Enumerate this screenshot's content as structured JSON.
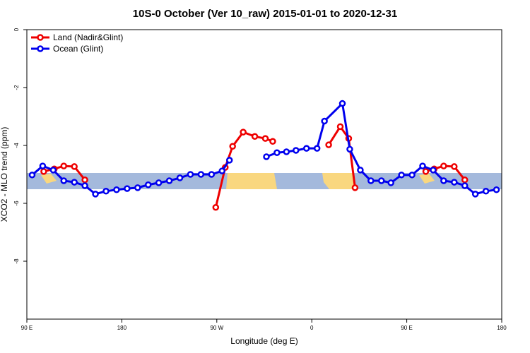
{
  "chart_data": {
    "type": "line",
    "title": "10S-0 October (Ver 10_raw)   2015-01-01 to 2020-12-31",
    "x_label": "Longitude (deg E)",
    "y_label": "XCO2 - MLO trend (ppm)",
    "xlim": [
      90,
      540
    ],
    "xticks": [
      {
        "value": 90,
        "label": "90 E"
      },
      {
        "value": 180,
        "label": "180"
      },
      {
        "value": 270,
        "label": "90 W"
      },
      {
        "value": 360,
        "label": "0"
      },
      {
        "value": 450,
        "label": "90 E"
      },
      {
        "value": 540,
        "label": "180"
      }
    ],
    "ylim": [
      -10,
      0
    ],
    "yticks": [
      0,
      -2,
      -4,
      -6,
      -8
    ],
    "legend": "top-left",
    "series": [
      {
        "name": "Land (Nadir&Glint)",
        "color": "#ee0000",
        "x": [
          106,
          116,
          125,
          135,
          145,
          null,
          269,
          278,
          285,
          295,
          306,
          316,
          323,
          null,
          376,
          387,
          395,
          401,
          null,
          468,
          476,
          485,
          495,
          505
        ],
        "values": [
          -4.9,
          -4.81,
          -4.71,
          -4.73,
          -5.19,
          null,
          -6.14,
          -4.76,
          -4.03,
          -3.54,
          -3.69,
          -3.76,
          -3.86,
          null,
          -3.98,
          -3.35,
          -3.76,
          -5.46,
          null,
          -4.9,
          -4.81,
          -4.71,
          -4.73,
          -5.19
        ]
      },
      {
        "name": "Ocean (Glint)",
        "color": "#0000ee",
        "x": [
          95,
          105,
          115,
          125,
          135,
          145,
          155,
          165,
          175,
          185,
          195,
          205,
          215,
          225,
          235,
          245,
          255,
          265,
          275,
          282,
          null,
          317,
          327,
          336,
          345,
          355,
          365,
          372,
          389,
          396,
          406,
          416,
          426,
          435,
          445,
          455,
          465,
          475,
          485,
          495,
          505,
          515,
          525,
          535
        ],
        "values": [
          -5.02,
          -4.71,
          -4.85,
          -5.22,
          -5.27,
          -5.39,
          -5.68,
          -5.58,
          -5.53,
          -5.49,
          -5.46,
          -5.36,
          -5.29,
          -5.22,
          -5.12,
          -5.0,
          -5.0,
          -5.0,
          -4.88,
          -4.51,
          null,
          -4.39,
          -4.25,
          -4.22,
          -4.17,
          -4.1,
          -4.1,
          -3.16,
          -2.55,
          -4.13,
          -4.85,
          -5.22,
          -5.22,
          -5.29,
          -5.02,
          -5.02,
          -4.71,
          -4.85,
          -5.22,
          -5.27,
          -5.39,
          -5.68,
          -5.58,
          -5.53
        ]
      }
    ]
  }
}
